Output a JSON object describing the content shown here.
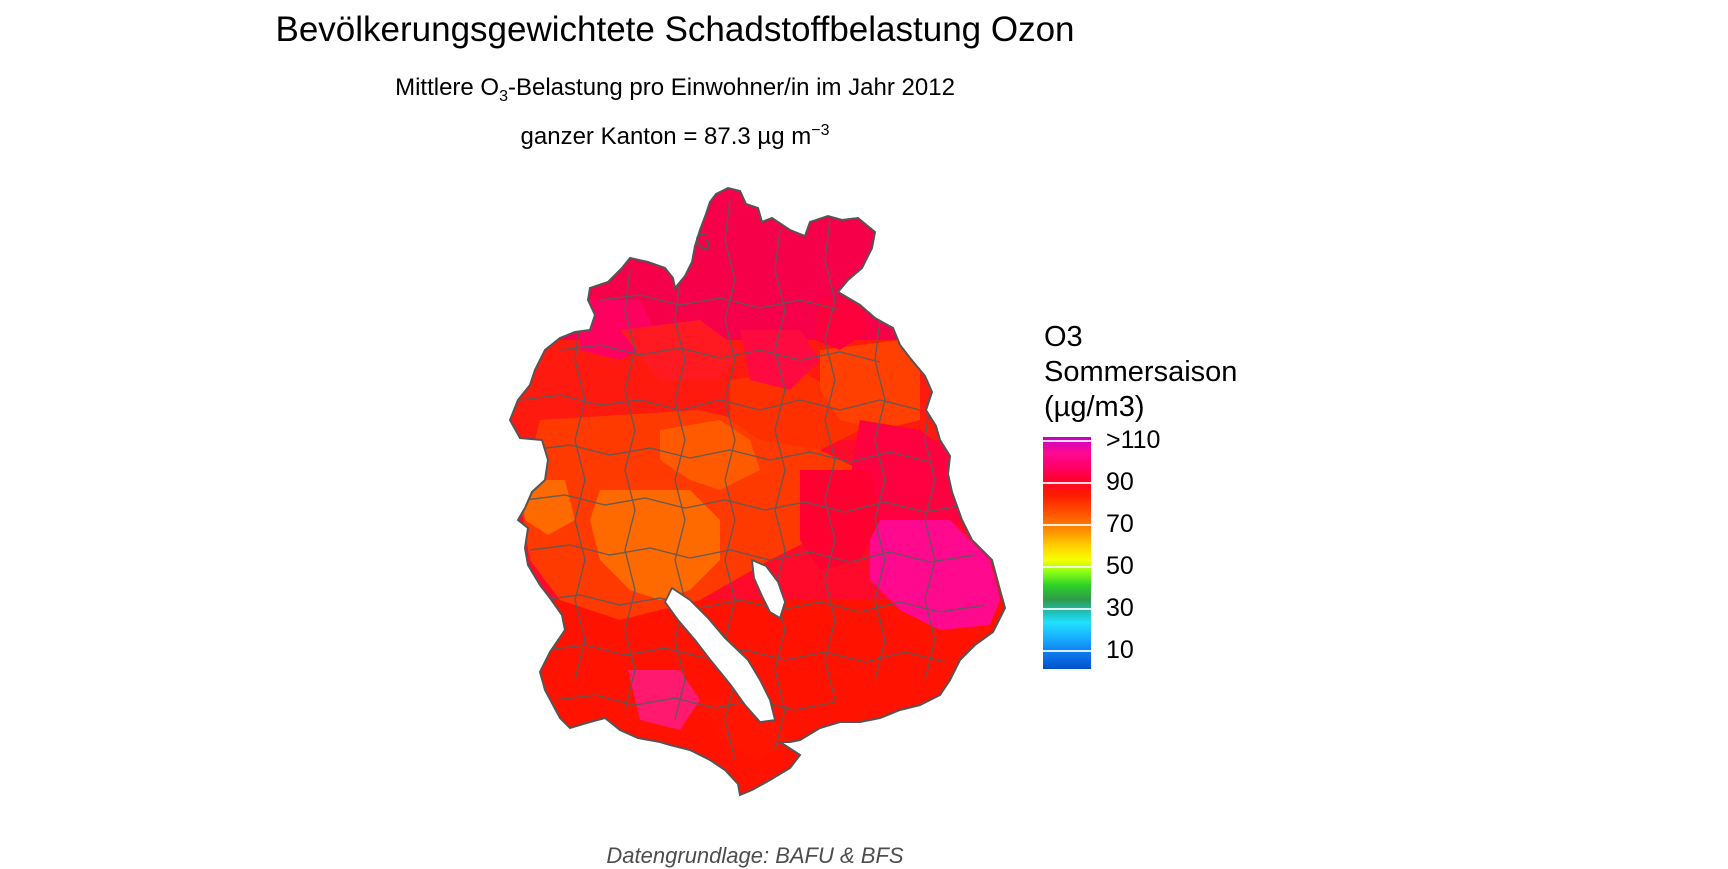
{
  "header": {
    "title": "Bevölkerungsgewichtete Schadstoffbelastung Ozon",
    "subtitle_pre": "Mittlere O",
    "subtitle_sub": "3",
    "subtitle_post": "-Belastung pro Einwohner/in im Jahr 2012",
    "kanton_text": "ganzer Kanton = 87.3 µg m",
    "kanton_sup": "−3"
  },
  "legend": {
    "title_line1": "O3",
    "title_line2": "Sommersaison",
    "title_line3": "(µg/m3)",
    "labels": [
      ">110",
      "90",
      "70",
      "50",
      "30",
      "10"
    ]
  },
  "caption": "Datengrundlage: BAFU & BFS",
  "colors": {
    "magenta": "#ff0a8f",
    "pink": "#ff0055",
    "red_pink": "#ff0033",
    "red": "#ff1200",
    "red_orange": "#ff3000",
    "orange": "#ff6a00",
    "border": "#5a5a5a"
  }
}
